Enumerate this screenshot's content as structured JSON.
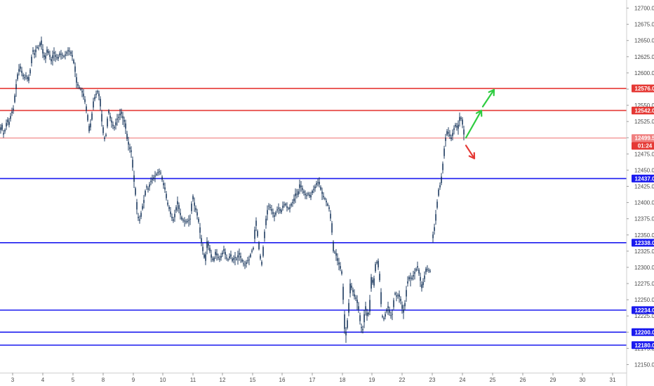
{
  "chart_data": {
    "type": "candlestick",
    "x_axis": {
      "tick_labels": [
        "3",
        "4",
        "5",
        "8",
        "9",
        "10",
        "11",
        "12",
        "15",
        "16",
        "17",
        "18",
        "19",
        "22",
        "23",
        "24",
        "25",
        "26",
        "29",
        "30",
        "31"
      ]
    },
    "y_axis": {
      "range": [
        12137.5,
        12712.5
      ],
      "tick_values": [
        12700,
        12675,
        12650,
        12625,
        12600,
        12575,
        12550,
        12525,
        12500,
        12475,
        12450,
        12425,
        12400,
        12375,
        12350,
        12325,
        12300,
        12275,
        12250,
        12225,
        12200,
        12175,
        12150
      ],
      "tick_labels": [
        "12700.0",
        "12675.0",
        "12650.0",
        "12625.0",
        "12600.0",
        "12575.0",
        "12550.0",
        "12525.0",
        "12500.0",
        "12475.0",
        "12450.0",
        "12425.0",
        "12400.0",
        "12375.0",
        "12350.0",
        "12325.0",
        "12300.0",
        "12275.0",
        "12250.0",
        "12225.0",
        "12200.0",
        "12175.0",
        "12150.0"
      ]
    },
    "price_path": [
      [
        0,
        12512
      ],
      [
        2,
        12520
      ],
      [
        4,
        12505
      ],
      [
        7,
        12512
      ],
      [
        10,
        12528
      ],
      [
        12,
        12520
      ],
      [
        16,
        12538
      ],
      [
        19,
        12545
      ],
      [
        22,
        12575
      ],
      [
        25,
        12598
      ],
      [
        28,
        12610
      ],
      [
        31,
        12600
      ],
      [
        34,
        12592
      ],
      [
        37,
        12596
      ],
      [
        40,
        12588
      ],
      [
        43,
        12605
      ],
      [
        46,
        12635
      ],
      [
        49,
        12628
      ],
      [
        52,
        12640
      ],
      [
        55,
        12638
      ],
      [
        58,
        12650
      ],
      [
        61,
        12630
      ],
      [
        64,
        12622
      ],
      [
        67,
        12636
      ],
      [
        70,
        12628
      ],
      [
        73,
        12618
      ],
      [
        76,
        12632
      ],
      [
        79,
        12625
      ],
      [
        82,
        12622
      ],
      [
        85,
        12630
      ],
      [
        88,
        12628
      ],
      [
        91,
        12625
      ],
      [
        94,
        12630
      ],
      [
        97,
        12635
      ],
      [
        100,
        12632
      ],
      [
        103,
        12625
      ],
      [
        106,
        12610
      ],
      [
        109,
        12585
      ],
      [
        112,
        12578
      ],
      [
        115,
        12574
      ],
      [
        118,
        12568
      ],
      [
        121,
        12555
      ],
      [
        124,
        12535
      ],
      [
        127,
        12510
      ],
      [
        130,
        12528
      ],
      [
        133,
        12556
      ],
      [
        136,
        12566
      ],
      [
        139,
        12572
      ],
      [
        142,
        12560
      ],
      [
        145,
        12525
      ],
      [
        148,
        12498
      ],
      [
        151,
        12505
      ],
      [
        154,
        12542
      ],
      [
        157,
        12530
      ],
      [
        160,
        12520
      ],
      [
        163,
        12515
      ],
      [
        166,
        12528
      ],
      [
        169,
        12532
      ],
      [
        172,
        12540
      ],
      [
        175,
        12530
      ],
      [
        178,
        12522
      ],
      [
        181,
        12498
      ],
      [
        184,
        12485
      ],
      [
        187,
        12478
      ],
      [
        190,
        12442
      ],
      [
        193,
        12412
      ],
      [
        196,
        12378
      ],
      [
        199,
        12372
      ],
      [
        202,
        12390
      ],
      [
        205,
        12404
      ],
      [
        208,
        12425
      ],
      [
        211,
        12420
      ],
      [
        214,
        12432
      ],
      [
        217,
        12436
      ],
      [
        220,
        12440
      ],
      [
        223,
        12444
      ],
      [
        226,
        12448
      ],
      [
        229,
        12445
      ],
      [
        232,
        12430
      ],
      [
        235,
        12420
      ],
      [
        238,
        12400
      ],
      [
        241,
        12390
      ],
      [
        244,
        12378
      ],
      [
        247,
        12372
      ],
      [
        250,
        12388
      ],
      [
        253,
        12402
      ],
      [
        256,
        12384
      ],
      [
        259,
        12374
      ],
      [
        262,
        12372
      ],
      [
        265,
        12370
      ],
      [
        268,
        12372
      ],
      [
        271,
        12375
      ],
      [
        274,
        12410
      ],
      [
        277,
        12395
      ],
      [
        280,
        12385
      ],
      [
        283,
        12370
      ],
      [
        286,
        12345
      ],
      [
        289,
        12325
      ],
      [
        292,
        12310
      ],
      [
        295,
        12340
      ],
      [
        298,
        12330
      ],
      [
        301,
        12315
      ],
      [
        304,
        12310
      ],
      [
        307,
        12324
      ],
      [
        310,
        12316
      ],
      [
        313,
        12312
      ],
      [
        316,
        12320
      ],
      [
        319,
        12328
      ],
      [
        322,
        12315
      ],
      [
        325,
        12311
      ],
      [
        328,
        12320
      ],
      [
        331,
        12310
      ],
      [
        334,
        12316
      ],
      [
        337,
        12312
      ],
      [
        340,
        12322
      ],
      [
        343,
        12315
      ],
      [
        346,
        12306
      ],
      [
        349,
        12303
      ],
      [
        352,
        12310
      ],
      [
        355,
        12312
      ],
      [
        358,
        12324
      ],
      [
        361,
        12330
      ],
      [
        364,
        12372
      ],
      [
        367,
        12348
      ],
      [
        370,
        12318
      ],
      [
        373,
        12304
      ],
      [
        376,
        12345
      ],
      [
        379,
        12375
      ],
      [
        382,
        12395
      ],
      [
        385,
        12392
      ],
      [
        388,
        12385
      ],
      [
        391,
        12378
      ],
      [
        394,
        12388
      ],
      [
        397,
        12392
      ],
      [
        400,
        12385
      ],
      [
        403,
        12395
      ],
      [
        406,
        12398
      ],
      [
        409,
        12392
      ],
      [
        412,
        12390
      ],
      [
        415,
        12398
      ],
      [
        418,
        12402
      ],
      [
        421,
        12414
      ],
      [
        424,
        12412
      ],
      [
        427,
        12428
      ],
      [
        430,
        12422
      ],
      [
        433,
        12415
      ],
      [
        436,
        12410
      ],
      [
        439,
        12414
      ],
      [
        442,
        12408
      ],
      [
        445,
        12418
      ],
      [
        448,
        12422
      ],
      [
        451,
        12430
      ],
      [
        454,
        12432
      ],
      [
        457,
        12420
      ],
      [
        460,
        12410
      ],
      [
        463,
        12405
      ],
      [
        466,
        12398
      ],
      [
        469,
        12390
      ],
      [
        472,
        12368
      ],
      [
        475,
        12325
      ],
      [
        478,
        12322
      ],
      [
        481,
        12310
      ],
      [
        484,
        12302
      ],
      [
        487,
        12290
      ],
      [
        489,
        12250
      ],
      [
        491,
        12205
      ],
      [
        493,
        12195
      ],
      [
        496,
        12230
      ],
      [
        499,
        12275
      ],
      [
        502,
        12265
      ],
      [
        505,
        12255
      ],
      [
        508,
        12250
      ],
      [
        511,
        12235
      ],
      [
        514,
        12208
      ],
      [
        517,
        12203
      ],
      [
        520,
        12240
      ],
      [
        523,
        12225
      ],
      [
        526,
        12232
      ],
      [
        529,
        12285
      ],
      [
        532,
        12272
      ],
      [
        535,
        12305
      ],
      [
        538,
        12310
      ],
      [
        541,
        12280
      ],
      [
        544,
        12225
      ],
      [
        547,
        12220
      ],
      [
        550,
        12232
      ],
      [
        553,
        12240
      ],
      [
        556,
        12225
      ],
      [
        559,
        12228
      ],
      [
        562,
        12260
      ],
      [
        565,
        12255
      ],
      [
        568,
        12258
      ],
      [
        571,
        12248
      ],
      [
        574,
        12230
      ],
      [
        577,
        12245
      ],
      [
        580,
        12275
      ],
      [
        583,
        12285
      ],
      [
        586,
        12282
      ],
      [
        589,
        12288
      ],
      [
        592,
        12295
      ],
      [
        595,
        12302
      ],
      [
        598,
        12285
      ],
      [
        601,
        12268
      ],
      [
        604,
        12282
      ],
      [
        607,
        12298
      ],
      [
        610,
        12296
      ],
      [
        613,
        12294
      ],
      [
        616,
        12345
      ],
      [
        619,
        12362
      ],
      [
        622,
        12392
      ],
      [
        625,
        12420
      ],
      [
        628,
        12430
      ],
      [
        631,
        12460
      ],
      [
        634,
        12495
      ],
      [
        637,
        12510
      ],
      [
        640,
        12505
      ],
      [
        643,
        12498
      ],
      [
        646,
        12512
      ],
      [
        649,
        12520
      ],
      [
        652,
        12514
      ],
      [
        655,
        12532
      ],
      [
        658,
        12528
      ],
      [
        661,
        12505
      ]
    ],
    "horizontal_levels": [
      {
        "value": 12576.0,
        "label": "12576.0",
        "color": "#e53935",
        "thick": true
      },
      {
        "value": 12542.0,
        "label": "12542.0",
        "color": "#e53935",
        "thick": true
      },
      {
        "value": 12499.5,
        "label": "12499.5",
        "color": "#f08080",
        "thick": false
      },
      {
        "value": 12437.0,
        "label": "12437.0",
        "color": "#1a1aef",
        "thick": true
      },
      {
        "value": 12338.0,
        "label": "12338.0",
        "color": "#1a1aef",
        "thick": true
      },
      {
        "value": 12234.0,
        "label": "12234.0",
        "color": "#1a1aef",
        "thick": true
      },
      {
        "value": 12200.0,
        "label": "12200.0",
        "color": "#1a1aef",
        "thick": true
      },
      {
        "value": 12180.0,
        "label": "12180.0",
        "color": "#1a1aef",
        "thick": true
      }
    ],
    "countdown": "01:24",
    "candle_color": "#0d2c54",
    "arrows": [
      {
        "color": "#2ecc40",
        "from": [
          664,
          12500
        ],
        "to": [
          686,
          12542
        ]
      },
      {
        "color": "#2ecc40",
        "from": [
          688,
          12548
        ],
        "to": [
          704,
          12574
        ]
      },
      {
        "color": "#e53935",
        "from": [
          664,
          12488
        ],
        "to": [
          676,
          12468
        ]
      }
    ]
  }
}
